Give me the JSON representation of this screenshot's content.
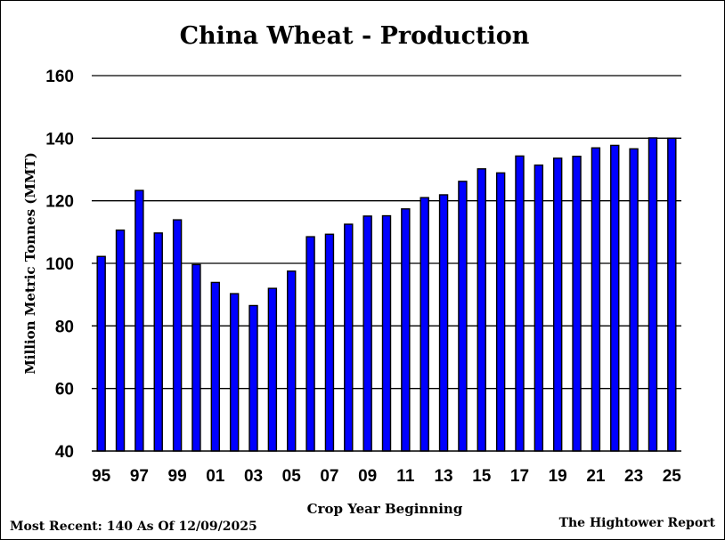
{
  "chart_data": {
    "type": "bar",
    "title": "China Wheat - Production",
    "xlabel": "Crop Year Beginning",
    "ylabel": "Million Metric Tonnes (MMT)",
    "ylim": [
      40,
      160
    ],
    "yticks": [
      "40",
      "60",
      "80",
      "100",
      "120",
      "140",
      "160"
    ],
    "grid": "horizontal",
    "bar_color": "#0000ff",
    "categories": [
      "95",
      "96",
      "97",
      "98",
      "99",
      "00",
      "01",
      "02",
      "03",
      "04",
      "05",
      "06",
      "07",
      "08",
      "09",
      "10",
      "11",
      "12",
      "13",
      "14",
      "15",
      "16",
      "17",
      "18",
      "19",
      "20",
      "21",
      "22",
      "23",
      "24",
      "25"
    ],
    "xtick_labels": [
      "95",
      "97",
      "99",
      "01",
      "03",
      "05",
      "07",
      "09",
      "11",
      "13",
      "15",
      "17",
      "19",
      "21",
      "23",
      "25"
    ],
    "values": [
      102.2,
      110.6,
      123.3,
      109.7,
      113.9,
      99.6,
      93.9,
      90.3,
      86.5,
      92.0,
      97.5,
      108.5,
      109.3,
      112.5,
      115.1,
      115.2,
      117.4,
      121.0,
      121.9,
      126.2,
      130.2,
      128.9,
      134.3,
      131.4,
      133.6,
      134.2,
      136.9,
      137.7,
      136.6,
      140.1,
      140.0
    ]
  },
  "footer": {
    "most_recent": "Most Recent: 140 As Of 12/09/2025",
    "source": "The Hightower Report"
  }
}
